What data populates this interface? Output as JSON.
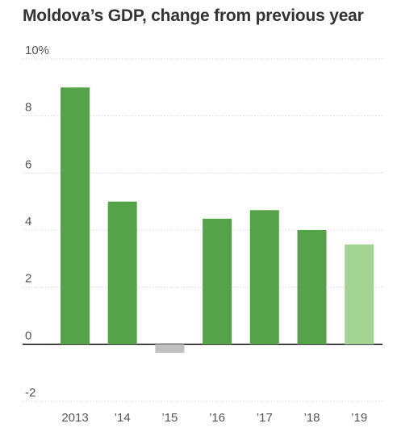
{
  "chart_data": {
    "type": "bar",
    "title": "Moldova’s GDP, change from previous year",
    "categories": [
      "2013",
      "’14",
      "’15",
      "’16",
      "’17",
      "’18",
      "’19"
    ],
    "values": [
      9.0,
      5.0,
      -0.3,
      4.4,
      4.7,
      4.0,
      3.5
    ],
    "bar_colors": [
      "#55a348",
      "#55a348",
      "#c0c0c0",
      "#55a348",
      "#55a348",
      "#55a348",
      "#a3d392"
    ],
    "ylim": [
      -2,
      10
    ],
    "yticks": [
      {
        "value": -2,
        "label": "-2"
      },
      {
        "value": 0,
        "label": "0"
      },
      {
        "value": 2,
        "label": "2"
      },
      {
        "value": 4,
        "label": "4"
      },
      {
        "value": 6,
        "label": "6"
      },
      {
        "value": 8,
        "label": "8"
      },
      {
        "value": 10,
        "label": "10%"
      }
    ],
    "grid": true,
    "xlabel": "",
    "ylabel": ""
  }
}
